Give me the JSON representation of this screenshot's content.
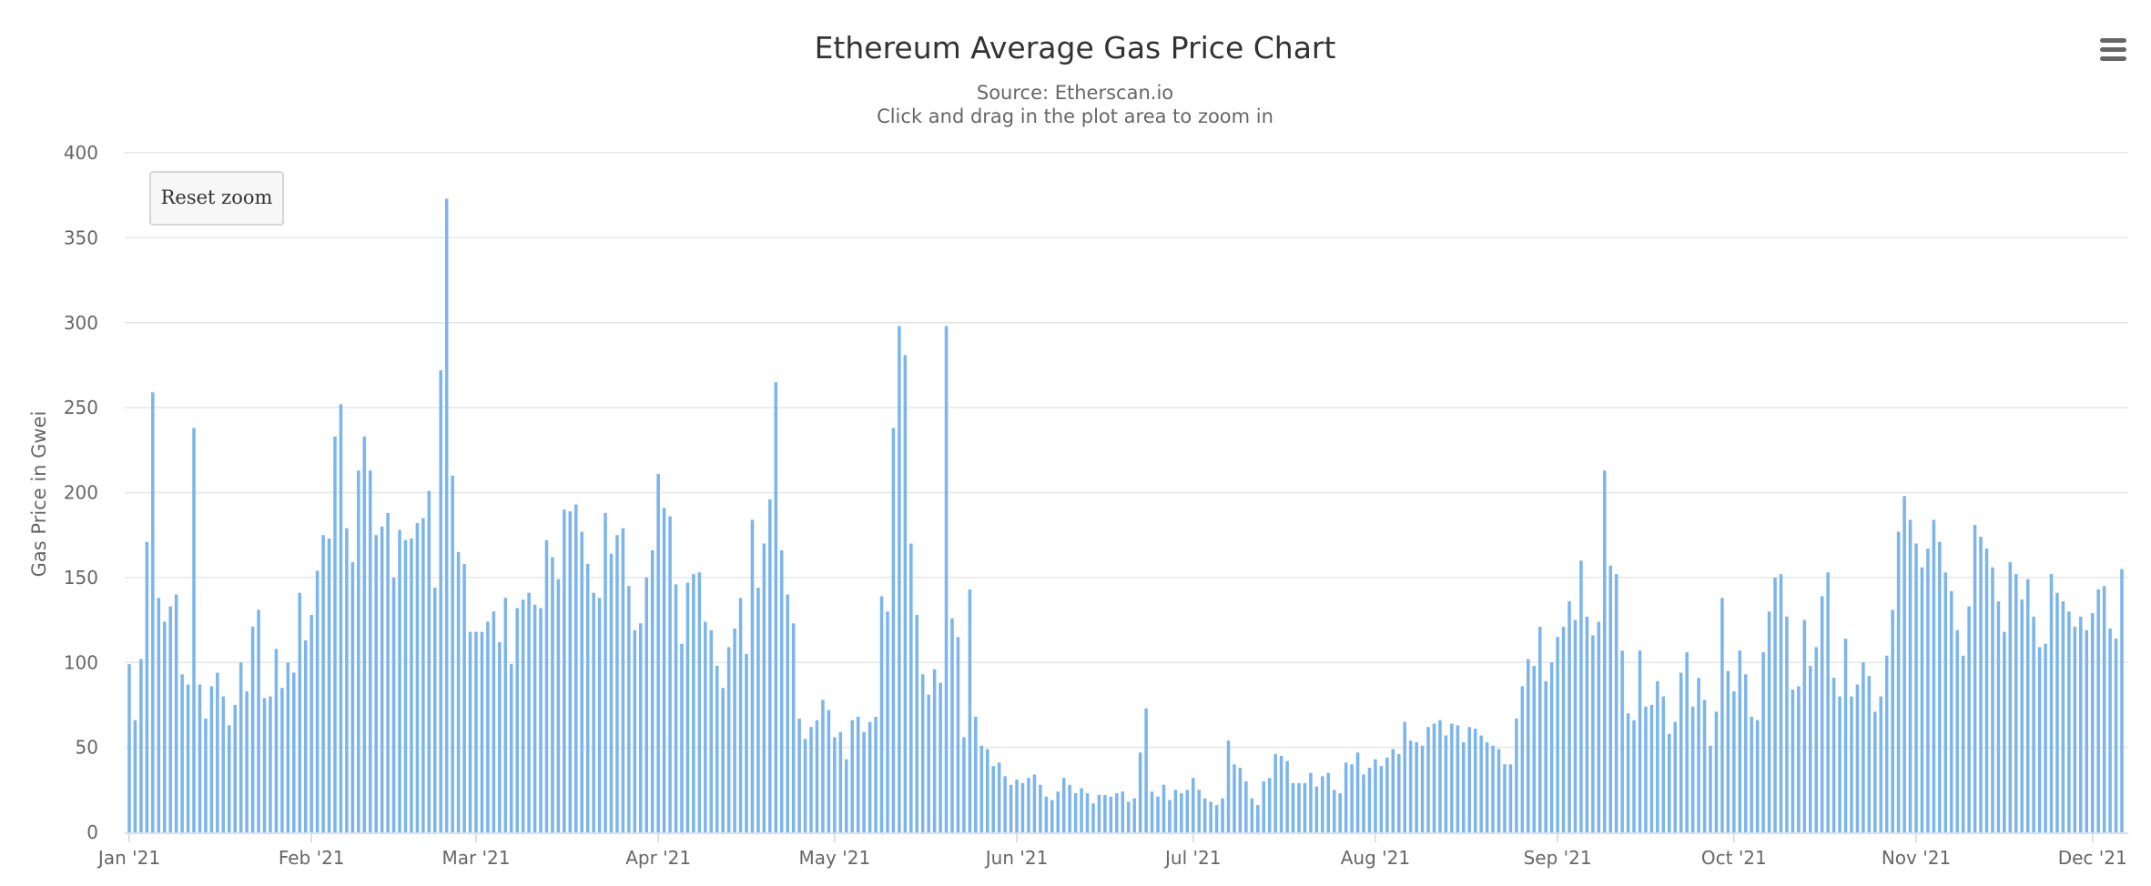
{
  "chart_data": {
    "type": "bar",
    "title": "Ethereum Average Gas Price Chart",
    "subtitle": "Source: Etherscan.io",
    "subtitle2": "Click and drag in the plot area to zoom in",
    "ylabel": "Gas Price in Gwei",
    "xlabel": "",
    "ylim": [
      0,
      400
    ],
    "yticks": [
      0,
      50,
      100,
      150,
      200,
      250,
      300,
      350,
      400
    ],
    "x_start": "2021-01-01",
    "x_end": "2021-12-06",
    "month_ticks": [
      {
        "label": "Jan '21",
        "day": 0
      },
      {
        "label": "Feb '21",
        "day": 31
      },
      {
        "label": "Mar '21",
        "day": 59
      },
      {
        "label": "Apr '21",
        "day": 90
      },
      {
        "label": "May '21",
        "day": 120
      },
      {
        "label": "Jun '21",
        "day": 151
      },
      {
        "label": "Jul '21",
        "day": 181
      },
      {
        "label": "Aug '21",
        "day": 212
      },
      {
        "label": "Sep '21",
        "day": 243
      },
      {
        "label": "Oct '21",
        "day": 273
      },
      {
        "label": "Nov '21",
        "day": 304
      },
      {
        "label": "Dec '21",
        "day": 334
      }
    ],
    "series": [
      {
        "name": "Gas Price (Gwei)",
        "color": "#7cb5ec",
        "values": [
          99,
          66,
          102,
          171,
          259,
          138,
          124,
          133,
          140,
          93,
          87,
          238,
          87,
          67,
          86,
          94,
          80,
          63,
          75,
          100,
          83,
          121,
          131,
          79,
          80,
          108,
          85,
          100,
          94,
          141,
          113,
          128,
          154,
          175,
          173,
          233,
          252,
          179,
          159,
          213,
          233,
          213,
          175,
          180,
          188,
          150,
          178,
          172,
          173,
          182,
          185,
          201,
          144,
          272,
          373,
          210,
          165,
          158,
          118,
          118,
          118,
          124,
          130,
          112,
          138,
          99,
          132,
          137,
          141,
          134,
          132,
          172,
          162,
          149,
          190,
          189,
          193,
          177,
          158,
          141,
          138,
          188,
          164,
          175,
          179,
          145,
          119,
          123,
          150,
          166,
          211,
          191,
          186,
          146,
          111,
          147,
          152,
          153,
          124,
          119,
          98,
          85,
          109,
          120,
          138,
          105,
          184,
          144,
          170,
          196,
          265,
          166,
          140,
          123,
          67,
          55,
          62,
          66,
          78,
          72,
          56,
          59,
          43,
          66,
          68,
          59,
          65,
          68,
          139,
          130,
          238,
          298,
          281,
          170,
          128,
          93,
          81,
          96,
          88,
          298,
          126,
          115,
          56,
          143,
          68,
          51,
          49,
          39,
          41,
          33,
          28,
          31,
          29,
          32,
          34,
          28,
          21,
          19,
          24,
          32,
          28,
          23,
          26,
          23,
          17,
          22,
          22,
          21,
          23,
          24,
          18,
          20,
          47,
          73,
          24,
          21,
          28,
          19,
          25,
          23,
          25,
          32,
          25,
          20,
          18,
          16,
          20,
          54,
          40,
          38,
          30,
          20,
          16,
          30,
          32,
          46,
          45,
          42,
          29,
          29,
          29,
          35,
          27,
          33,
          35,
          25,
          23,
          41,
          40,
          47,
          34,
          38,
          43,
          39,
          44,
          49,
          46,
          65,
          54,
          53,
          51,
          62,
          64,
          66,
          57,
          64,
          63,
          53,
          62,
          61,
          57,
          53,
          51,
          49,
          40,
          40,
          67,
          86,
          102,
          98,
          121,
          89,
          100,
          115,
          121,
          136,
          125,
          160,
          127,
          116,
          124,
          213,
          157,
          152,
          107,
          70,
          66,
          107,
          74,
          75,
          89,
          80,
          58,
          65,
          94,
          106,
          74,
          91,
          78,
          51,
          71,
          138,
          95,
          83,
          107,
          93,
          68,
          66,
          106,
          130,
          150,
          152,
          127,
          84,
          86,
          125,
          98,
          109,
          139,
          153,
          91,
          80,
          114,
          80,
          87,
          100,
          92,
          71,
          80,
          104,
          131,
          177,
          198,
          184,
          170,
          156,
          167,
          184,
          171,
          153,
          142,
          119,
          104,
          133,
          181,
          174,
          167,
          156,
          136,
          118,
          159,
          152,
          137,
          149,
          127,
          109,
          111,
          152,
          141,
          136,
          130,
          121,
          127,
          119,
          129,
          143,
          145,
          120,
          114,
          155
        ]
      }
    ],
    "reset_zoom_label": "Reset zoom"
  },
  "icons": {
    "menu": "hamburger-menu-icon"
  }
}
